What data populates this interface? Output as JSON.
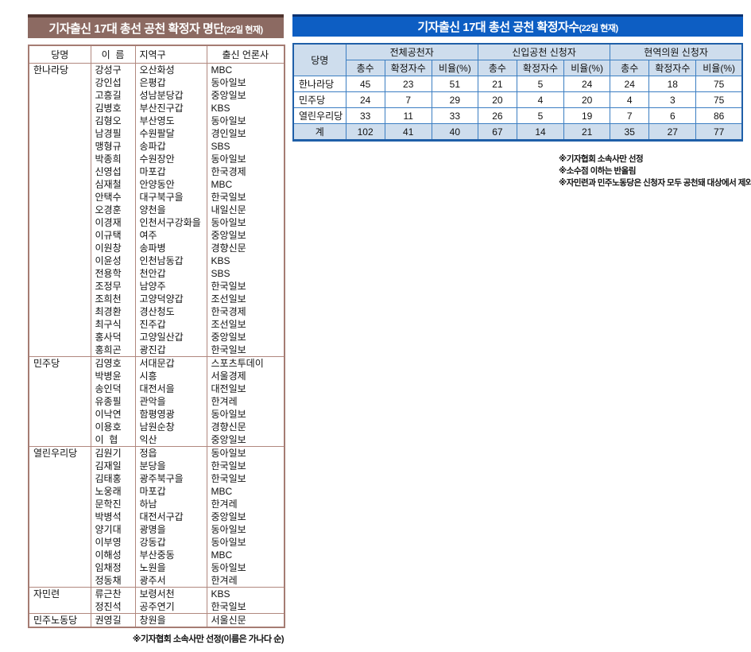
{
  "left_table": {
    "title": "기자출신 17대 총선 공천 확정자 명단",
    "title_suffix": "(22일 현재)",
    "columns": [
      "당명",
      "이  름",
      "지역구",
      "출신 언론사"
    ],
    "groups": [
      {
        "party": "한나라당",
        "members": [
          [
            "강성구",
            "오산화성",
            "MBC"
          ],
          [
            "강인섭",
            "은평갑",
            "동아일보"
          ],
          [
            "고흥길",
            "성남분당갑",
            "중앙일보"
          ],
          [
            "김병호",
            "부산진구갑",
            "KBS"
          ],
          [
            "김형오",
            "부산영도",
            "동아일보"
          ],
          [
            "남경필",
            "수원팔달",
            "경인일보"
          ],
          [
            "맹형규",
            "송파갑",
            "SBS"
          ],
          [
            "박종희",
            "수원장안",
            "동아일보"
          ],
          [
            "신영섭",
            "마포갑",
            "한국경제"
          ],
          [
            "심재철",
            "안양동안",
            "MBC"
          ],
          [
            "안택수",
            "대구북구을",
            "한국일보"
          ],
          [
            "오경훈",
            "양천을",
            "내일신문"
          ],
          [
            "이경재",
            "인천서구강화을",
            "동아일보"
          ],
          [
            "이규택",
            "여주",
            "중앙일보"
          ],
          [
            "이원창",
            "송파병",
            "경향신문"
          ],
          [
            "이윤성",
            "인천남동갑",
            "KBS"
          ],
          [
            "전용학",
            "천안갑",
            "SBS"
          ],
          [
            "조정무",
            "남양주",
            "한국일보"
          ],
          [
            "조희천",
            "고양덕양갑",
            "조선일보"
          ],
          [
            "최경환",
            "경산청도",
            "한국경제"
          ],
          [
            "최구식",
            "진주갑",
            "조선일보"
          ],
          [
            "홍사덕",
            "고양일산갑",
            "중앙일보"
          ],
          [
            "홍희곤",
            "광진갑",
            "한국일보"
          ]
        ]
      },
      {
        "party": "민주당",
        "members": [
          [
            "김영호",
            "서대문갑",
            "스포츠투데이"
          ],
          [
            "박병윤",
            "시흥",
            "서울경제"
          ],
          [
            "송인덕",
            "대전서을",
            "대전일보"
          ],
          [
            "유종필",
            "관악을",
            "한겨레"
          ],
          [
            "이낙연",
            "함평영광",
            "동아일보"
          ],
          [
            "이용호",
            "남원순창",
            "경향신문"
          ],
          [
            "이  협",
            "익산",
            "중앙일보"
          ]
        ]
      },
      {
        "party": "열린우리당",
        "members": [
          [
            "김원기",
            "정읍",
            "동아일보"
          ],
          [
            "김재일",
            "분당을",
            "한국일보"
          ],
          [
            "김태홍",
            "광주북구을",
            "한국일보"
          ],
          [
            "노웅래",
            "마포갑",
            "MBC"
          ],
          [
            "문학진",
            "하남",
            "한겨레"
          ],
          [
            "박병석",
            "대전서구갑",
            "중앙일보"
          ],
          [
            "양기대",
            "광명을",
            "동아일보"
          ],
          [
            "이부영",
            "강동갑",
            "동아일보"
          ],
          [
            "이해성",
            "부산중동",
            "MBC"
          ],
          [
            "임채정",
            "노원을",
            "동아일보"
          ],
          [
            "정동채",
            "광주서",
            "한겨레"
          ]
        ]
      },
      {
        "party": "자민련",
        "members": [
          [
            "류근찬",
            "보령서천",
            "KBS"
          ],
          [
            "정진석",
            "공주연기",
            "한국일보"
          ]
        ]
      },
      {
        "party": "민주노동당",
        "members": [
          [
            "권영길",
            "창원을",
            "서울신문"
          ]
        ]
      }
    ],
    "footnote": "※기자협회 소속사만 선정(이름은 가나다 순)"
  },
  "right_table": {
    "title": "기자출신 17대 총선 공천 확정자수",
    "title_suffix": "(22일 현재)",
    "party_col_header": "당명",
    "col_groups": [
      "전체공천자",
      "신입공천 신청자",
      "현역의원 신청자"
    ],
    "sub_columns": [
      "총수",
      "확정자수",
      "비율(%)"
    ],
    "rows": [
      {
        "party": "한나라당",
        "values": [
          "45",
          "23",
          "51",
          "21",
          "5",
          "24",
          "24",
          "18",
          "75"
        ],
        "total": false
      },
      {
        "party": "민주당",
        "values": [
          "24",
          "7",
          "29",
          "20",
          "4",
          "20",
          "4",
          "3",
          "75"
        ],
        "total": false
      },
      {
        "party": "열린우리당",
        "values": [
          "33",
          "11",
          "33",
          "26",
          "5",
          "19",
          "7",
          "6",
          "86"
        ],
        "total": false
      },
      {
        "party": "계",
        "values": [
          "102",
          "41",
          "40",
          "67",
          "14",
          "21",
          "35",
          "27",
          "77"
        ],
        "total": true
      }
    ],
    "footnotes": [
      "※기자협회 소속사만 선정",
      "※소수점 이하는 반올림",
      "※자민련과 민주노동당은 신청자 모두 공천돼 대상에서 제외"
    ]
  },
  "colors": {
    "left_title_bg": "#8c6a62",
    "left_title_top_line": "#50342e",
    "left_border": "#b1887f",
    "right_title_bg": "#0d5ec3",
    "right_title_top_line": "#0a3170",
    "right_border": "#3b7ec2",
    "right_header_bg": "#cedded",
    "title_text": "#ffffff"
  }
}
